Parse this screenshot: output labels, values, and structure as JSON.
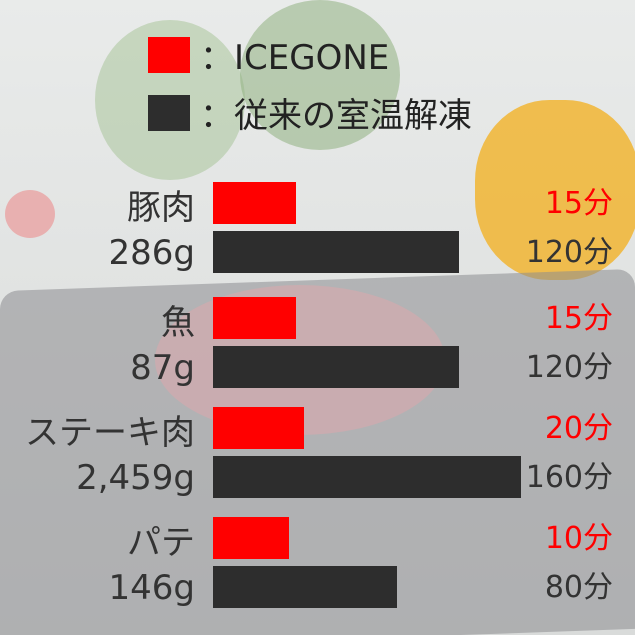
{
  "legend": [
    {
      "label": "：ICEGONE",
      "color": "#ff0000"
    },
    {
      "label": "：従来の室温解凍",
      "color": "#2d2d2d"
    }
  ],
  "chart_data": {
    "type": "bar",
    "orientation": "horizontal",
    "categories": [
      {
        "name": "豚肉",
        "weight": "286g"
      },
      {
        "name": "魚",
        "weight": "87g"
      },
      {
        "name": "ステーキ肉",
        "weight": "2,459g"
      },
      {
        "name": "パテ",
        "weight": "146g"
      }
    ],
    "series": [
      {
        "name": "ICEGONE",
        "color": "#ff0000",
        "values": [
          15,
          15,
          20,
          10
        ],
        "labels": [
          "15分",
          "15分",
          "20分",
          "10分"
        ]
      },
      {
        "name": "従来の室温解凍",
        "color": "#2d2d2d",
        "values": [
          120,
          120,
          160,
          80
        ],
        "labels": [
          "120分",
          "120分",
          "160分",
          "80分"
        ]
      }
    ]
  }
}
